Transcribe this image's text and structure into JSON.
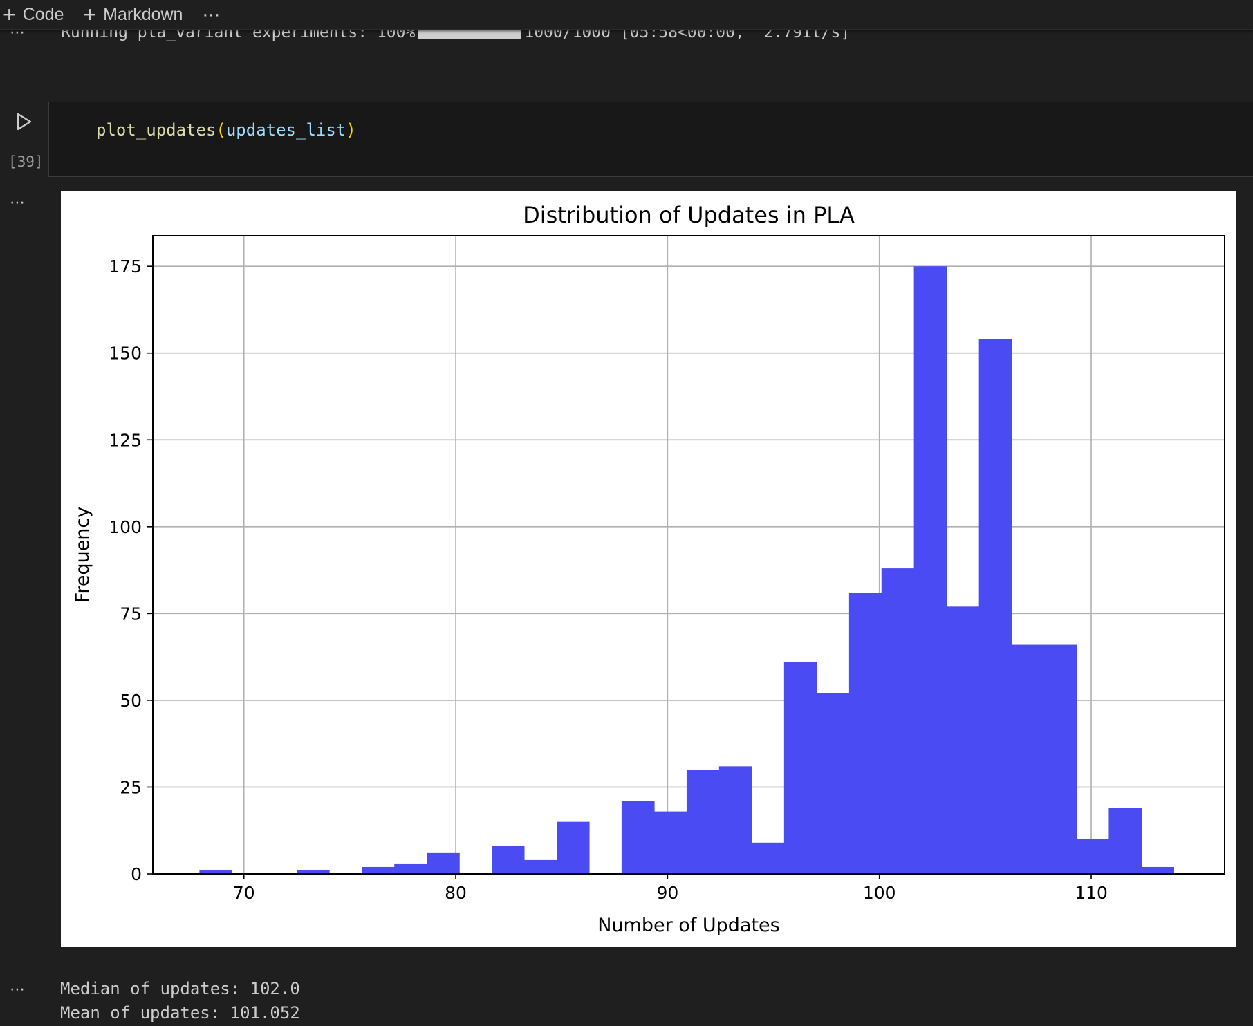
{
  "toolbar": {
    "code_label": "Code",
    "markdown_label": "Markdown",
    "more_label": "⋯"
  },
  "progress": {
    "prefix": "Running pla_variant experiments: 100%",
    "suffix": "1000/1000 [05:58<00:00,  2.79it/s]",
    "fraction": 1.0
  },
  "gutter": {
    "more": "⋯"
  },
  "cell": {
    "execution_count": "[39]",
    "code": {
      "fn": "plot_updates",
      "open": "(",
      "arg": "updates_list",
      "close": ")"
    }
  },
  "chart_data": {
    "type": "bar",
    "title": "Distribution of Updates in PLA",
    "xlabel": "Number of Updates",
    "ylabel": "Frequency",
    "bar_color": "#4b4bf3",
    "grid": true,
    "xlim": [
      65.7,
      116.3
    ],
    "ylim": [
      0,
      183.8
    ],
    "xticks": [
      70,
      80,
      90,
      100,
      110
    ],
    "yticks": [
      0,
      25,
      50,
      75,
      100,
      125,
      150,
      175
    ],
    "bin_edges": [
      67.9,
      69.43,
      70.97,
      72.5,
      74.03,
      75.57,
      77.1,
      78.63,
      80.17,
      81.7,
      83.23,
      84.77,
      86.3,
      87.83,
      89.37,
      90.9,
      92.43,
      93.97,
      95.5,
      97.03,
      98.57,
      100.1,
      101.63,
      103.17,
      104.7,
      106.23,
      107.77,
      109.3,
      110.83,
      112.37,
      113.9
    ],
    "values": [
      1,
      0,
      0,
      1,
      0,
      2,
      3,
      6,
      0,
      8,
      4,
      15,
      0,
      21,
      18,
      30,
      31,
      9,
      61,
      52,
      81,
      88,
      175,
      77,
      154,
      66,
      66,
      10,
      19,
      2
    ]
  },
  "stats": {
    "median": "Median of updates: 102.0",
    "mean": "Mean of updates: 101.052"
  }
}
